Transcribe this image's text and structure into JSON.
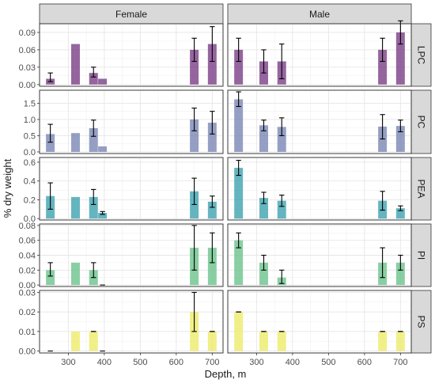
{
  "chart_data": {
    "type": "bar",
    "xlabel": "Depth, m",
    "ylabel": "% dry weight",
    "x_ticks": [
      300,
      400,
      500,
      600,
      700
    ],
    "xlim": [
      220,
      730
    ],
    "columns": [
      "Female",
      "Male"
    ],
    "rows": [
      {
        "label": "LPC",
        "color": "#7b3f87",
        "ylim": [
          -0.003,
          0.105
        ],
        "y_ticks": [
          0.0,
          0.03,
          0.06,
          0.09
        ],
        "y_tick_labels": [
          "0.00",
          "0.03",
          "0.06",
          "0.09"
        ],
        "Female": [
          {
            "x": 250,
            "y": 0.01,
            "lo": 0.005,
            "hi": 0.02
          },
          {
            "x": 320,
            "y": 0.07
          },
          {
            "x": 370,
            "y": 0.02,
            "lo": 0.013,
            "hi": 0.03
          },
          {
            "x": 395,
            "y": 0.01
          },
          {
            "x": 650,
            "y": 0.06,
            "lo": 0.04,
            "hi": 0.08
          },
          {
            "x": 700,
            "y": 0.07,
            "lo": 0.04,
            "hi": 0.1
          }
        ],
        "Male": [
          {
            "x": 250,
            "y": 0.06,
            "lo": 0.04,
            "hi": 0.08
          },
          {
            "x": 320,
            "y": 0.04,
            "lo": 0.02,
            "hi": 0.06
          },
          {
            "x": 370,
            "y": 0.04,
            "lo": 0.01,
            "hi": 0.07
          },
          {
            "x": 650,
            "y": 0.06,
            "lo": 0.04,
            "hi": 0.08
          },
          {
            "x": 700,
            "y": 0.09,
            "lo": 0.07,
            "hi": 0.11
          }
        ]
      },
      {
        "label": "PC",
        "color": "#7b87b5",
        "ylim": [
          -0.05,
          1.9
        ],
        "y_ticks": [
          0.0,
          0.5,
          1.0,
          1.5
        ],
        "y_tick_labels": [
          "0.0",
          "0.5",
          "1.0",
          "1.5"
        ],
        "Female": [
          {
            "x": 250,
            "y": 0.55,
            "lo": 0.3,
            "hi": 0.85
          },
          {
            "x": 320,
            "y": 0.58
          },
          {
            "x": 370,
            "y": 0.73,
            "lo": 0.48,
            "hi": 0.98
          },
          {
            "x": 395,
            "y": 0.17
          },
          {
            "x": 650,
            "y": 1.0,
            "lo": 0.65,
            "hi": 1.35
          },
          {
            "x": 700,
            "y": 0.9,
            "lo": 0.55,
            "hi": 1.25
          }
        ],
        "Male": [
          {
            "x": 250,
            "y": 1.62,
            "lo": 1.4,
            "hi": 1.85
          },
          {
            "x": 320,
            "y": 0.82,
            "lo": 0.65,
            "hi": 0.98
          },
          {
            "x": 370,
            "y": 0.77,
            "lo": 0.5,
            "hi": 1.05
          },
          {
            "x": 650,
            "y": 0.78,
            "lo": 0.4,
            "hi": 1.15
          },
          {
            "x": 700,
            "y": 0.8,
            "lo": 0.62,
            "hi": 0.98
          }
        ]
      },
      {
        "label": "PEA",
        "color": "#3fa3b0",
        "ylim": [
          -0.015,
          0.65
        ],
        "y_ticks": [
          0.0,
          0.2,
          0.4,
          0.6
        ],
        "y_tick_labels": [
          "0.0",
          "0.2",
          "0.4",
          "0.6"
        ],
        "Female": [
          {
            "x": 250,
            "y": 0.24,
            "lo": 0.1,
            "hi": 0.38
          },
          {
            "x": 320,
            "y": 0.23
          },
          {
            "x": 370,
            "y": 0.23,
            "lo": 0.15,
            "hi": 0.31
          },
          {
            "x": 395,
            "y": 0.06,
            "lo": 0.045,
            "hi": 0.075
          },
          {
            "x": 650,
            "y": 0.29,
            "lo": 0.15,
            "hi": 0.43
          },
          {
            "x": 700,
            "y": 0.18,
            "lo": 0.12,
            "hi": 0.24
          }
        ],
        "Male": [
          {
            "x": 250,
            "y": 0.54,
            "lo": 0.46,
            "hi": 0.62
          },
          {
            "x": 320,
            "y": 0.22,
            "lo": 0.16,
            "hi": 0.28
          },
          {
            "x": 370,
            "y": 0.19,
            "lo": 0.13,
            "hi": 0.25
          },
          {
            "x": 650,
            "y": 0.19,
            "lo": 0.09,
            "hi": 0.29
          },
          {
            "x": 700,
            "y": 0.11,
            "lo": 0.085,
            "hi": 0.135
          }
        ]
      },
      {
        "label": "PI",
        "color": "#6cc38c",
        "ylim": [
          -0.002,
          0.082
        ],
        "y_ticks": [
          0.0,
          0.02,
          0.04,
          0.06,
          0.08
        ],
        "y_tick_labels": [
          "0.00",
          "0.02",
          "0.04",
          "0.06",
          "0.08"
        ],
        "Female": [
          {
            "x": 250,
            "y": 0.02,
            "lo": 0.012,
            "hi": 0.03
          },
          {
            "x": 320,
            "y": 0.03
          },
          {
            "x": 370,
            "y": 0.02,
            "lo": 0.01,
            "hi": 0.03
          },
          {
            "x": 395,
            "y": 0.0
          },
          {
            "x": 650,
            "y": 0.05,
            "lo": 0.02,
            "hi": 0.08
          },
          {
            "x": 700,
            "y": 0.05,
            "lo": 0.03,
            "hi": 0.07
          }
        ],
        "Male": [
          {
            "x": 250,
            "y": 0.06,
            "lo": 0.05,
            "hi": 0.07
          },
          {
            "x": 320,
            "y": 0.03,
            "lo": 0.02,
            "hi": 0.04
          },
          {
            "x": 370,
            "y": 0.01,
            "lo": 0.002,
            "hi": 0.02
          },
          {
            "x": 650,
            "y": 0.03,
            "lo": 0.01,
            "hi": 0.05
          },
          {
            "x": 700,
            "y": 0.03,
            "lo": 0.02,
            "hi": 0.04
          }
        ]
      },
      {
        "label": "PS",
        "color": "#eeeb6a",
        "ylim": [
          -0.001,
          0.031
        ],
        "y_ticks": [
          0.0,
          0.01,
          0.02,
          0.03
        ],
        "y_tick_labels": [
          "0.00",
          "0.01",
          "0.02",
          "0.03"
        ],
        "Female": [
          {
            "x": 250,
            "y": 0.0
          },
          {
            "x": 320,
            "y": 0.01
          },
          {
            "x": 370,
            "y": 0.01,
            "lo": 0.01,
            "hi": 0.01
          },
          {
            "x": 395,
            "y": 0.0
          },
          {
            "x": 650,
            "y": 0.02,
            "lo": 0.01,
            "hi": 0.03
          },
          {
            "x": 700,
            "y": 0.01,
            "lo": 0.01,
            "hi": 0.01
          }
        ],
        "Male": [
          {
            "x": 250,
            "y": 0.02,
            "lo": 0.02,
            "hi": 0.02
          },
          {
            "x": 320,
            "y": 0.01,
            "lo": 0.01,
            "hi": 0.01
          },
          {
            "x": 370,
            "y": 0.01,
            "lo": 0.01,
            "hi": 0.01
          },
          {
            "x": 650,
            "y": 0.01,
            "lo": 0.01,
            "hi": 0.01
          },
          {
            "x": 700,
            "y": 0.01,
            "lo": 0.01,
            "hi": 0.01
          }
        ]
      }
    ]
  }
}
